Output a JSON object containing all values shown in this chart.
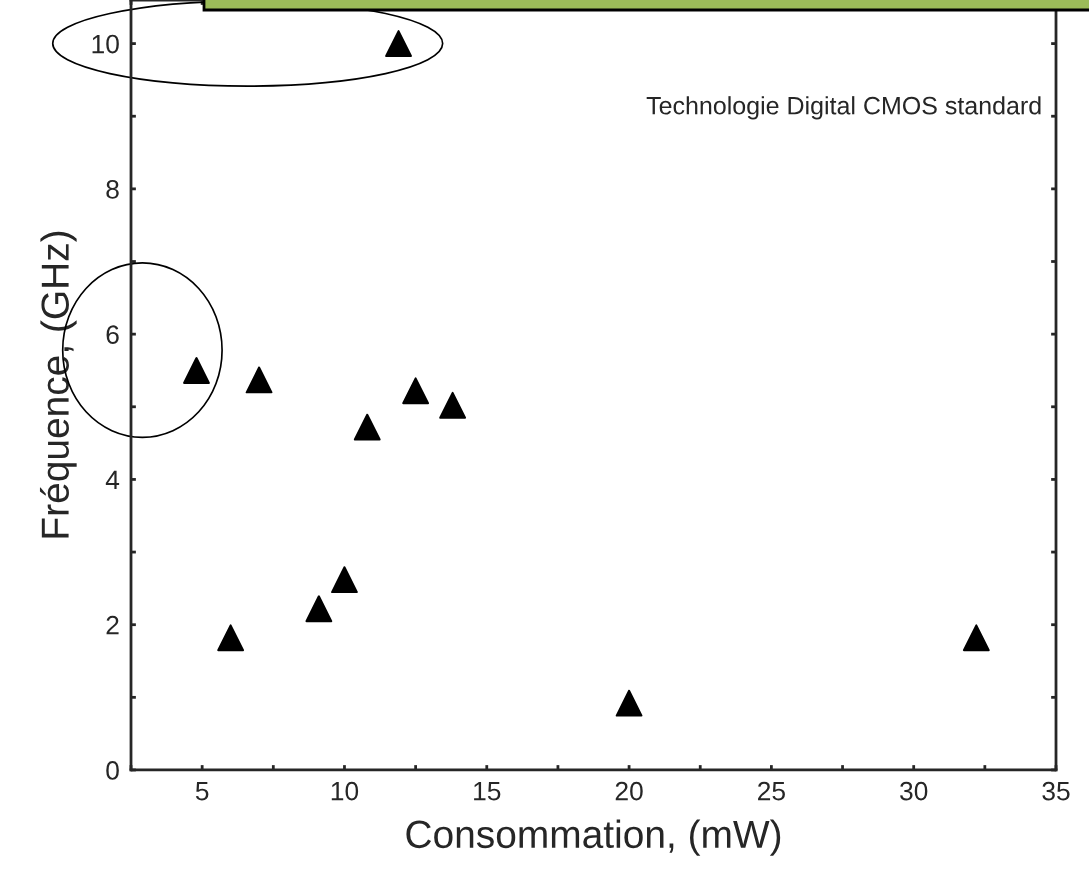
{
  "chart_data": {
    "type": "scatter",
    "xlabel": "Consommation, (mW)",
    "ylabel": "Fréquence, (GHz)",
    "x": [
      4.8,
      7.0,
      6.0,
      9.1,
      10.0,
      10.8,
      12.5,
      13.8,
      11.9,
      20.0,
      32.2
    ],
    "series": [
      {
        "color": "#000000",
        "values": [
          5.5,
          5.37,
          1.82,
          2.22,
          2.62,
          4.72,
          5.22,
          5.02,
          10.0,
          0.92,
          1.82
        ]
      }
    ],
    "marker": "triangle",
    "xlim": [
      2.5,
      35
    ],
    "ylim": [
      0,
      10.6
    ],
    "xticks": [
      {
        "value": 2.5,
        "label": null
      },
      5,
      {
        "value": 7.5,
        "label": null
      },
      10,
      {
        "value": 12.5,
        "label": null
      },
      15,
      {
        "value": 17.5,
        "label": null
      },
      20,
      {
        "value": 22.5,
        "label": null
      },
      25,
      {
        "value": 27.5,
        "label": null
      },
      30,
      {
        "value": 32.5,
        "label": null
      },
      35
    ],
    "yticks": [
      0,
      {
        "value": 1,
        "label": null
      },
      2,
      {
        "value": 3,
        "label": null
      },
      4,
      {
        "value": 5,
        "label": null
      },
      6,
      {
        "value": 7,
        "label": null
      },
      8,
      {
        "value": 9,
        "label": null
      },
      10
    ],
    "grid": false,
    "annotations": [
      "Technologie Digital CMOS standard"
    ]
  }
}
